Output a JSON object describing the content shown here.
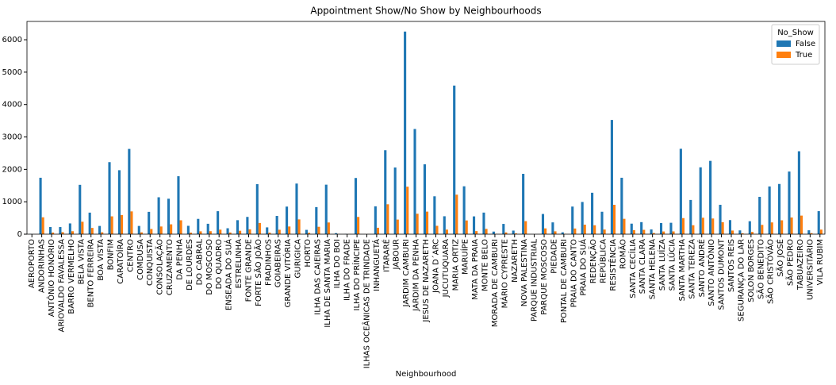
{
  "chart_data": {
    "type": "bar",
    "title": "Appointment Show/No Show by Neighbourhoods",
    "x_label": "Neighbourhood",
    "legend_title": "No_Show",
    "legend": "upper right",
    "categories": [
      "AEROPORTO",
      "ANDORINHAS",
      "ANTÔNIO HONÓRIO",
      "ARIOVALDO FAVALESSA",
      "BARRO VERMELHO",
      "BELA VISTA",
      "BENTO FERREIRA",
      "BOA VISTA",
      "BONFIM",
      "CARATOÍRA",
      "CENTRO",
      "COMDUSA",
      "CONQUISTA",
      "CONSOLAÇÃO",
      "CRUZAMENTO",
      "DA PENHA",
      "DE LOURDES",
      "DO CABRAL",
      "DO MOSCOSO",
      "DO QUADRO",
      "ENSEADA DO SUÁ",
      "ESTRELINHA",
      "FONTE GRANDE",
      "FORTE SÃO JOÃO",
      "FRADINHOS",
      "GOIABEIRAS",
      "GRANDE VITÓRIA",
      "GURIGICA",
      "HORTO",
      "ILHA DAS CAIEIRAS",
      "ILHA DE SANTA MARIA",
      "ILHA DO BOI",
      "ILHA DO FRADE",
      "ILHA DO PRÍNCIPE",
      "ILHAS OCEÂNICAS DE TRINDADE",
      "INHANGUETÁ",
      "ITARARÉ",
      "JABOUR",
      "JARDIM CAMBURI",
      "JARDIM DA PENHA",
      "JESUS DE NAZARETH",
      "JOANA D´ARC",
      "JUCUTUQUARA",
      "MARIA ORTIZ",
      "MARUÍPE",
      "MATA DA PRAIA",
      "MONTE BELO",
      "MORADA DE CAMBURI",
      "MÁRIO CYPRESTE",
      "NAZARETH",
      "NOVA PALESTINA",
      "PARQUE INDUSTRIAL",
      "PARQUE MOSCOSO",
      "PIEDADE",
      "PONTAL DE CAMBURI",
      "PRAIA DO CANTO",
      "PRAIA DO SUÁ",
      "REDENÇÃO",
      "REPÚBLICA",
      "RESISTÊNCIA",
      "ROMÃO",
      "SANTA CECÍLIA",
      "SANTA CLARA",
      "SANTA HELENA",
      "SANTA LUÍZA",
      "SANTA LÚCIA",
      "SANTA MARTHA",
      "SANTA TEREZA",
      "SANTO ANDRÉ",
      "SANTO ANTÔNIO",
      "SANTOS DUMONT",
      "SANTOS REIS",
      "SEGURANÇA DO LAR",
      "SOLON BORGES",
      "SÃO BENEDITO",
      "SÃO CRISTÓVÃO",
      "SÃO JOSÉ",
      "SÃO PEDRO",
      "TABUAZEIRO",
      "UNIVERSITÁRIO",
      "VILA RUBIM"
    ],
    "series": [
      {
        "name": "False",
        "color": "#1f77b4",
        "values": [
          7,
          1741,
          221,
          220,
          332,
          1523,
          665,
          254,
          2223,
          1974,
          2631,
          254,
          689,
          1139,
          1094,
          1788,
          258,
          472,
          321,
          709,
          183,
          432,
          533,
          1543,
          210,
          563,
          851,
          1562,
          133,
          836,
          1528,
          32,
          8,
          1734,
          0,
          859,
          2591,
          2058,
          6252,
          3246,
          2157,
          1169,
          553,
          4586,
          1478,
          549,
          666,
          80,
          317,
          111,
          1862,
          1,
          623,
          364,
          57,
          852,
          994,
          1278,
          692,
          3525,
          1741,
          325,
          372,
          146,
          343,
          352,
          2635,
          1056,
          2063,
          2262,
          907,
          435,
          117,
          400,
          1152,
          1473,
          1549,
          1933,
          2559,
          120,
          710
        ]
      },
      {
        "name": "True",
        "color": "#ff7f0e",
        "values": [
          1,
          521,
          50,
          62,
          91,
          384,
          193,
          58,
          550,
          591,
          703,
          56,
          160,
          237,
          304,
          429,
          47,
          88,
          92,
          140,
          52,
          106,
          149,
          346,
          48,
          137,
          237,
          456,
          42,
          228,
          361,
          3,
          2,
          532,
          2,
          198,
          923,
          451,
          1465,
          631,
          696,
          258,
          141,
          1219,
          424,
          95,
          163,
          10,
          54,
          24,
          402,
          0,
          179,
          88,
          12,
          175,
          294,
          275,
          143,
          906,
          474,
          123,
          134,
          37,
          84,
          86,
          496,
          276,
          508,
          484,
          369,
          112,
          28,
          69,
          287,
          363,
          428,
          515,
          573,
          32,
          141
        ]
      }
    ],
    "ylim": [
      0,
      6565
    ],
    "yticks": [
      0,
      1000,
      2000,
      3000,
      4000,
      5000,
      6000
    ]
  }
}
